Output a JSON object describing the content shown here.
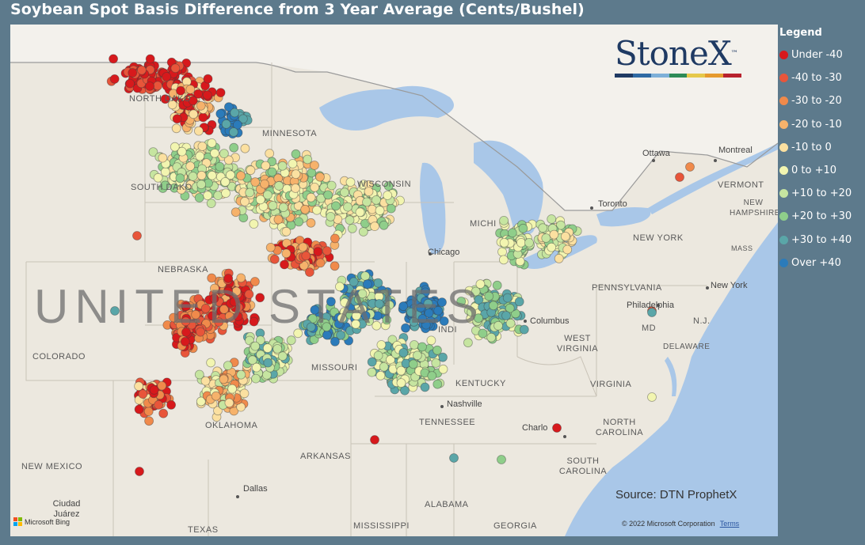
{
  "title": "Soybean Spot Basis Difference from 3 Year Average (Cents/Bushel)",
  "legend": {
    "title": "Legend",
    "items": [
      {
        "label": "Under -40",
        "color": "#d7191c"
      },
      {
        "label": "-40 to -30",
        "color": "#e8553a"
      },
      {
        "label": "-30 to -20",
        "color": "#f08a4b"
      },
      {
        "label": "-20 to -10",
        "color": "#f6b26b"
      },
      {
        "label": "-10 to 0",
        "color": "#fbe0a0"
      },
      {
        "label": "0 to +10",
        "color": "#f2f5b0"
      },
      {
        "label": "+10 to +20",
        "color": "#c6e5a0"
      },
      {
        "label": "+20 to +30",
        "color": "#8fce8a"
      },
      {
        "label": "+30 to +40",
        "color": "#5aa6a8"
      },
      {
        "label": "Over +40",
        "color": "#2b7bba"
      }
    ]
  },
  "logo": {
    "text": "StoneX",
    "tm": "™"
  },
  "source": "Source: DTN ProphetX",
  "copyright": "© 2022 Microsoft Corporation",
  "terms": "Terms",
  "bing": "Microsoft Bing",
  "map_labels": {
    "country": "UNITED STATES",
    "states": {
      "north_dakota": "NORTH DAKO",
      "south_dakota": "SOUTH DAKO",
      "minnesota": "MINNESOTA",
      "wisconsin": "WISCONSIN",
      "michigan": "MICHI",
      "nebraska": "NEBRASKA",
      "colorado": "COLORADO",
      "missouri": "MISSOURI",
      "indiana": "INDI",
      "kentucky": "KENTUCKY",
      "tennessee": "TENNESSEE",
      "oklahoma": "OKLAHOMA",
      "arkansas": "ARKANSAS",
      "new_mexico": "NEW MEXICO",
      "texas": "TEXAS",
      "mississippi": "MISSISSIPPI",
      "alabama": "ALABAMA",
      "georgia": "GEORGIA",
      "south_carolina": "SOUTH CAROLINA",
      "north_carolina": "NORTH CAROLINA",
      "virginia": "VIRGINIA",
      "west_virginia": "WEST VIRGINIA",
      "pennsylvania": "PENNSYLVANIA",
      "new_york": "NEW YORK",
      "vermont": "VERMONT",
      "new_hampshire": "NEW HAMPSHIRE",
      "massachusetts": "MASS",
      "maryland": "MD",
      "delaware": "DELAWARE",
      "new_jersey": "N.J."
    },
    "cities": {
      "chicago": "Chicago",
      "columbus": "Columbus",
      "nashville": "Nashville",
      "dallas": "Dallas",
      "ciudad_juarez": "Ciudad Juárez",
      "toronto": "Toronto",
      "ottawa": "Ottawa",
      "montreal": "Montreal",
      "new_york": "New York",
      "philadelphia": "Philadelphia",
      "charlotte": "Charlo"
    }
  },
  "colors": {
    "land": "#ece8df",
    "water": "#a9c7e8",
    "canada": "#f1eee8",
    "panel": "#5d7a8c"
  }
}
